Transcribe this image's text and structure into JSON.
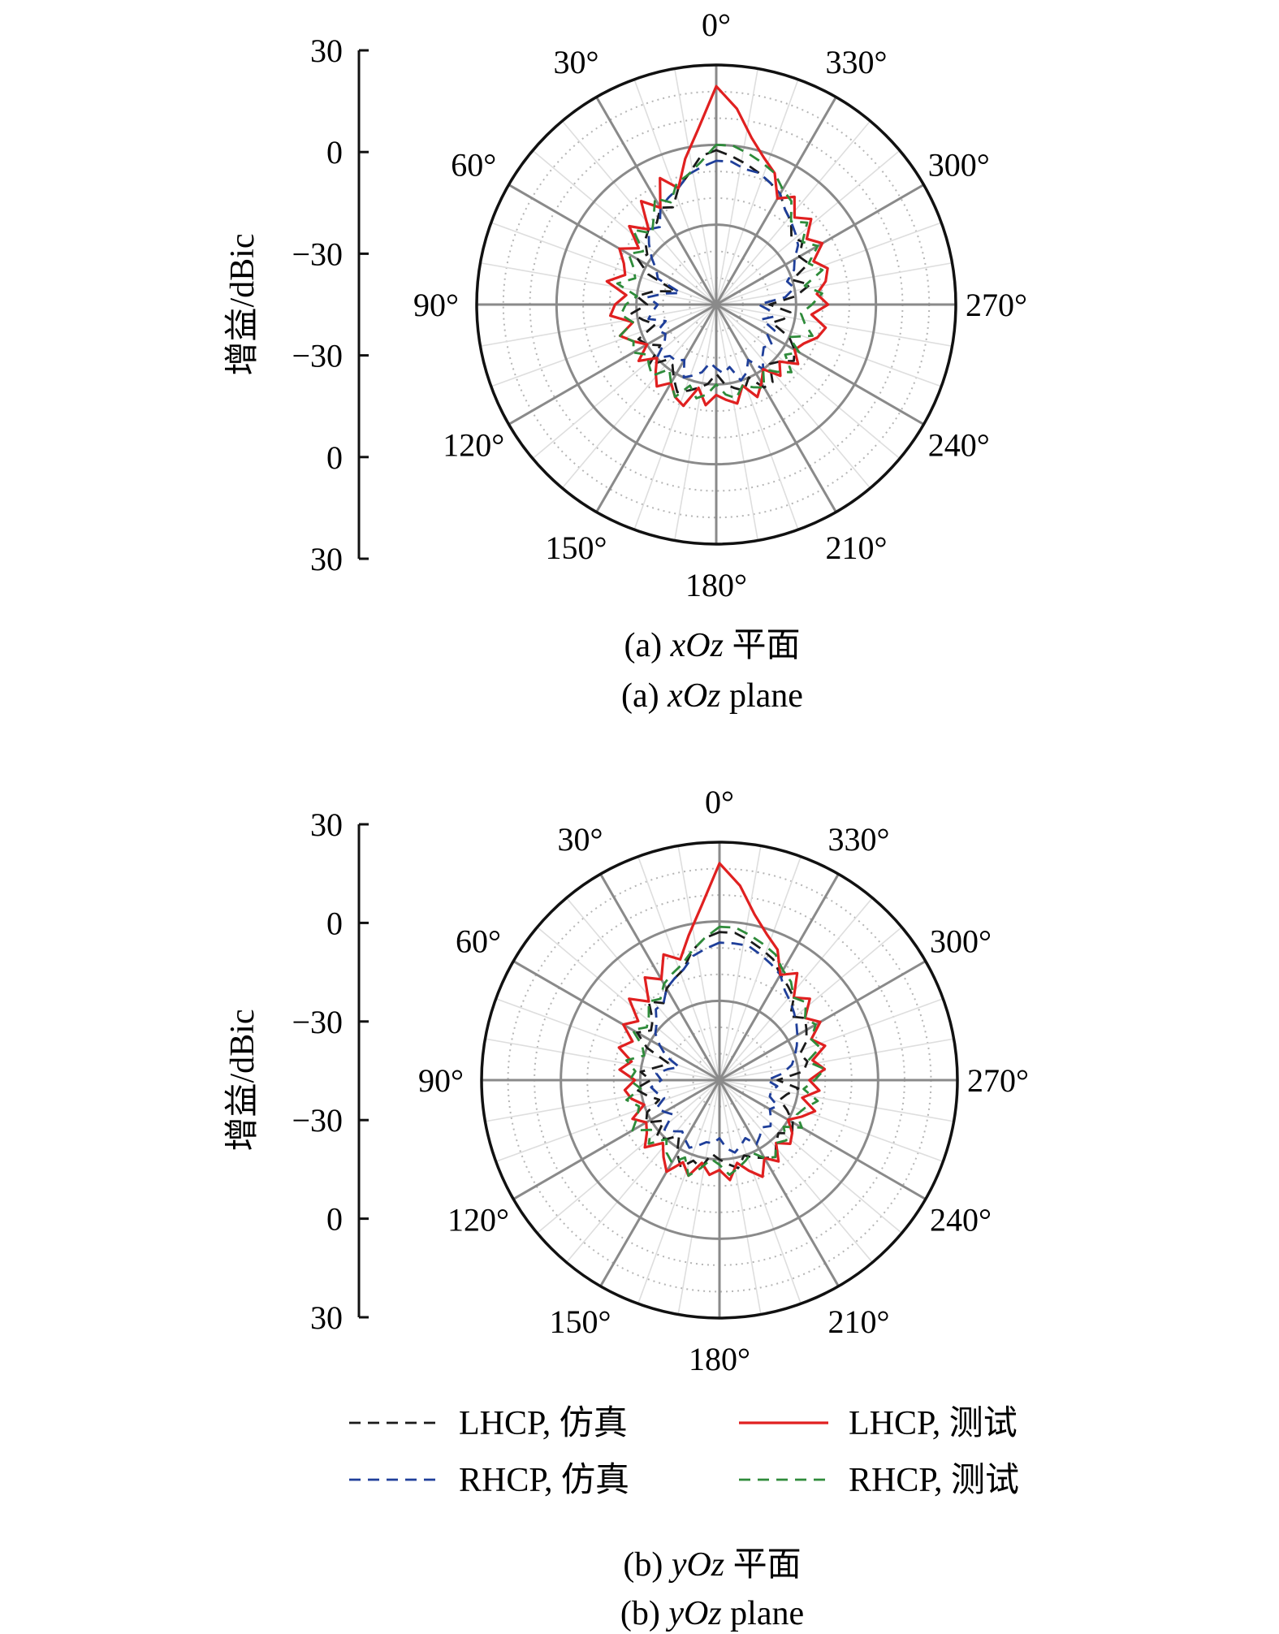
{
  "chart_data": [
    {
      "type": "polar-line",
      "panel": "a",
      "caption_cn_prefix": "(a) ",
      "caption_cn_var": "xOz",
      "caption_cn_suffix": " 平面",
      "caption_en_prefix": "(a) ",
      "caption_en_var": "xOz",
      "caption_en_suffix": " plane",
      "ylabel": "增益/dBic",
      "r_range_dBic": [
        -60,
        30
      ],
      "r_ticks": [
        "30",
        "0",
        "−30",
        "−30",
        "0",
        "30"
      ],
      "angle_labels": [
        "0°",
        "30°",
        "60°",
        "90°",
        "120°",
        "150°",
        "180°",
        "210°",
        "240°",
        "270°",
        "300°",
        "330°"
      ],
      "angle_step_deg": 30,
      "angle_direction": "counterclockwise",
      "grid": true,
      "series": [
        {
          "name": "LHCP, 仿真",
          "style": "dashed",
          "color": "#1a1a1a",
          "gain_dBic": [
            -2,
            -4,
            -10,
            -14,
            -20,
            -18,
            -22,
            -22,
            -24,
            -28,
            -26,
            -32,
            -44,
            -36,
            -30,
            -34,
            -28,
            -32,
            -36,
            -28,
            -30,
            -34,
            -26,
            -32,
            -32,
            -28,
            -24,
            -26,
            -28,
            -30,
            -34,
            -30,
            -28,
            -26,
            -30,
            -24,
            -24,
            -30,
            -28,
            -24,
            -26,
            -30,
            -38,
            -34,
            -32,
            -40,
            -30,
            -24,
            -30,
            -22,
            -24,
            -20,
            -22,
            -18,
            -16,
            -12,
            -10,
            -8,
            -6,
            -4
          ]
        },
        {
          "name": "RHCP, 仿真",
          "style": "dashed",
          "color": "#1f3f9a",
          "gain_dBic": [
            -6,
            -8,
            -10,
            -14,
            -16,
            -18,
            -24,
            -22,
            -26,
            -30,
            -34,
            -36,
            -46,
            -40,
            -34,
            -38,
            -36,
            -34,
            -40,
            -36,
            -38,
            -36,
            -30,
            -34,
            -34,
            -36,
            -30,
            -32,
            -34,
            -38,
            -36,
            -34,
            -36,
            -30,
            -32,
            -36,
            -30,
            -34,
            -36,
            -34,
            -38,
            -36,
            -42,
            -38,
            -40,
            -44,
            -34,
            -30,
            -32,
            -28,
            -26,
            -22,
            -20,
            -18,
            -16,
            -12,
            -10,
            -8,
            -8,
            -6
          ]
        },
        {
          "name": "LHCP, 测试",
          "style": "solid",
          "color": "#e02020",
          "gain_dBic": [
            22,
            6,
            -4,
            -14,
            -8,
            -18,
            -12,
            -22,
            -16,
            -24,
            -18,
            -22,
            -24,
            -18,
            -26,
            -22,
            -20,
            -28,
            -22,
            -26,
            -30,
            -24,
            -30,
            -26,
            -22,
            -26,
            -22,
            -20,
            -28,
            -22,
            -26,
            -24,
            -22,
            -28,
            -22,
            -26,
            -30,
            -24,
            -28,
            -22,
            -26,
            -24,
            -20,
            -18,
            -24,
            -18,
            -22,
            -18,
            -16,
            -20,
            -14,
            -18,
            -12,
            -16,
            -10,
            -14,
            -6,
            -2,
            4,
            14
          ]
        },
        {
          "name": "RHCP, 测试",
          "style": "dashed",
          "color": "#2e8b3a",
          "gain_dBic": [
            0,
            -6,
            -10,
            -12,
            -18,
            -14,
            -20,
            -24,
            -18,
            -26,
            -22,
            -26,
            -28,
            -22,
            -30,
            -26,
            -24,
            -28,
            -22,
            -26,
            -24,
            -28,
            -26,
            -24,
            -30,
            -26,
            -22,
            -28,
            -24,
            -26,
            -30,
            -26,
            -24,
            -28,
            -26,
            -24,
            -30,
            -26,
            -22,
            -28,
            -24,
            -30,
            -22,
            -26,
            -28,
            -24,
            -20,
            -26,
            -18,
            -22,
            -16,
            -20,
            -14,
            -18,
            -12,
            -10,
            -6,
            -4,
            -2,
            0
          ]
        }
      ]
    },
    {
      "type": "polar-line",
      "panel": "b",
      "caption_cn_prefix": "(b) ",
      "caption_cn_var": "yOz",
      "caption_cn_suffix": " 平面",
      "caption_en_prefix": "(b) ",
      "caption_en_var": "yOz",
      "caption_en_suffix": " plane",
      "ylabel": "增益/dBic",
      "r_range_dBic": [
        -60,
        30
      ],
      "r_ticks": [
        "30",
        "0",
        "−30",
        "−30",
        "0",
        "30"
      ],
      "angle_labels": [
        "0°",
        "30°",
        "60°",
        "90°",
        "120°",
        "150°",
        "180°",
        "210°",
        "240°",
        "270°",
        "300°",
        "330°"
      ],
      "angle_step_deg": 30,
      "angle_direction": "counterclockwise",
      "grid": true,
      "series": [
        {
          "name": "LHCP, 仿真",
          "style": "dashed",
          "color": "#1a1a1a",
          "gain_dBic": [
            -4,
            -6,
            -10,
            -16,
            -18,
            -20,
            -24,
            -20,
            -26,
            -28,
            -24,
            -30,
            -40,
            -36,
            -30,
            -34,
            -28,
            -32,
            -36,
            -30,
            -28,
            -34,
            -28,
            -30,
            -34,
            -28,
            -24,
            -28,
            -26,
            -32,
            -30,
            -28,
            -26,
            -30,
            -28,
            -26,
            -24,
            -28,
            -30,
            -26,
            -28,
            -32,
            -36,
            -34,
            -30,
            -38,
            -28,
            -26,
            -28,
            -24,
            -22,
            -20,
            -24,
            -18,
            -16,
            -14,
            -10,
            -8,
            -6,
            -4
          ]
        },
        {
          "name": "RHCP, 仿真",
          "style": "dashed",
          "color": "#1f3f9a",
          "gain_dBic": [
            -8,
            -10,
            -12,
            -16,
            -18,
            -20,
            -24,
            -24,
            -28,
            -30,
            -34,
            -38,
            -44,
            -40,
            -36,
            -38,
            -34,
            -36,
            -38,
            -34,
            -36,
            -38,
            -32,
            -34,
            -36,
            -34,
            -32,
            -34,
            -36,
            -36,
            -38,
            -34,
            -32,
            -34,
            -36,
            -32,
            -34,
            -36,
            -34,
            -36,
            -38,
            -36,
            -40,
            -40,
            -38,
            -42,
            -36,
            -32,
            -30,
            -28,
            -26,
            -24,
            -22,
            -20,
            -18,
            -14,
            -12,
            -10,
            -8,
            -8
          ]
        },
        {
          "name": "LHCP, 测试",
          "style": "solid",
          "color": "#e02020",
          "gain_dBic": [
            22,
            6,
            -4,
            -12,
            -8,
            -16,
            -12,
            -20,
            -14,
            -22,
            -18,
            -24,
            -20,
            -26,
            -22,
            -28,
            -24,
            -26,
            -30,
            -24,
            -28,
            -26,
            -22,
            -28,
            -24,
            -20,
            -26,
            -22,
            -28,
            -24,
            -26,
            -22,
            -28,
            -24,
            -20,
            -26,
            -22,
            -28,
            -24,
            -26,
            -30,
            -26,
            -22,
            -28,
            -22,
            -26,
            -20,
            -24,
            -18,
            -22,
            -16,
            -20,
            -14,
            -18,
            -10,
            -14,
            -6,
            -2,
            4,
            14
          ]
        },
        {
          "name": "RHCP, 测试",
          "style": "dashed",
          "color": "#2e8b3a",
          "gain_dBic": [
            -2,
            -6,
            -10,
            -14,
            -16,
            -18,
            -22,
            -20,
            -24,
            -26,
            -22,
            -28,
            -30,
            -24,
            -28,
            -26,
            -30,
            -24,
            -28,
            -26,
            -22,
            -28,
            -24,
            -30,
            -26,
            -24,
            -28,
            -22,
            -26,
            -30,
            -28,
            -24,
            -26,
            -28,
            -30,
            -26,
            -24,
            -28,
            -26,
            -30,
            -24,
            -28,
            -26,
            -22,
            -28,
            -24,
            -20,
            -26,
            -20,
            -22,
            -18,
            -20,
            -16,
            -18,
            -14,
            -12,
            -8,
            -6,
            -4,
            -2
          ]
        }
      ]
    }
  ],
  "legend": {
    "placement": "bottom",
    "items": [
      {
        "label": "LHCP, 仿真",
        "style": "dashed",
        "color": "#1a1a1a"
      },
      {
        "label": "LHCP, 测试",
        "style": "solid",
        "color": "#e02020"
      },
      {
        "label": "RHCP, 仿真",
        "style": "dashed",
        "color": "#1f3f9a"
      },
      {
        "label": "RHCP, 测试",
        "style": "dashed",
        "color": "#2e8b3a"
      }
    ]
  }
}
